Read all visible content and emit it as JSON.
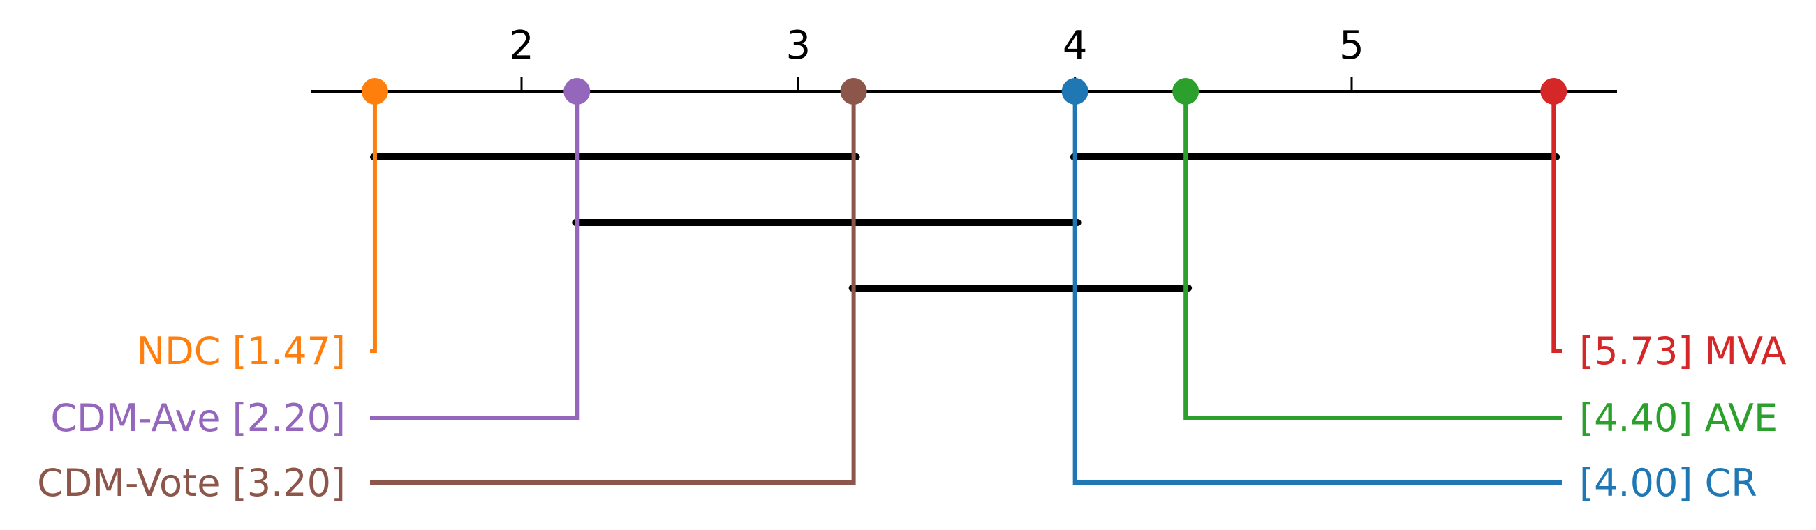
{
  "chart_data": {
    "type": "critical-difference-diagram",
    "axis": {
      "min": 1.47,
      "max": 6.2,
      "ticks": [
        2,
        3,
        4,
        5
      ],
      "tick_labels": [
        "2",
        "3",
        "4",
        "5"
      ]
    },
    "methods": [
      {
        "name": "NDC",
        "rank": 1.47,
        "rank_label": "1.47",
        "color": "#ff7f0e",
        "side": "left",
        "label": "NDC [1.47]"
      },
      {
        "name": "CDM-Ave",
        "rank": 2.2,
        "rank_label": "2.20",
        "color": "#9467bd",
        "side": "left",
        "label": "CDM-Ave [2.20]"
      },
      {
        "name": "CDM-Vote",
        "rank": 3.2,
        "rank_label": "3.20",
        "color": "#8c564b",
        "side": "left",
        "label": "CDM-Vote [3.20]"
      },
      {
        "name": "CR",
        "rank": 4.0,
        "rank_label": "4.00",
        "color": "#1f77b4",
        "side": "right",
        "label": "[4.00] CR"
      },
      {
        "name": "AVE",
        "rank": 4.4,
        "rank_label": "4.40",
        "color": "#2ca02c",
        "side": "right",
        "label": "[4.40] AVE"
      },
      {
        "name": "MVA",
        "rank": 5.73,
        "rank_label": "5.73",
        "color": "#d62728",
        "side": "right",
        "label": "[5.73] MVA"
      }
    ],
    "cliques": [
      {
        "from": 1.47,
        "to": 3.2,
        "row": 0
      },
      {
        "from": 4.0,
        "to": 5.73,
        "row": 0
      },
      {
        "from": 2.2,
        "to": 4.0,
        "row": 1
      },
      {
        "from": 3.2,
        "to": 4.4,
        "row": 2
      }
    ]
  }
}
